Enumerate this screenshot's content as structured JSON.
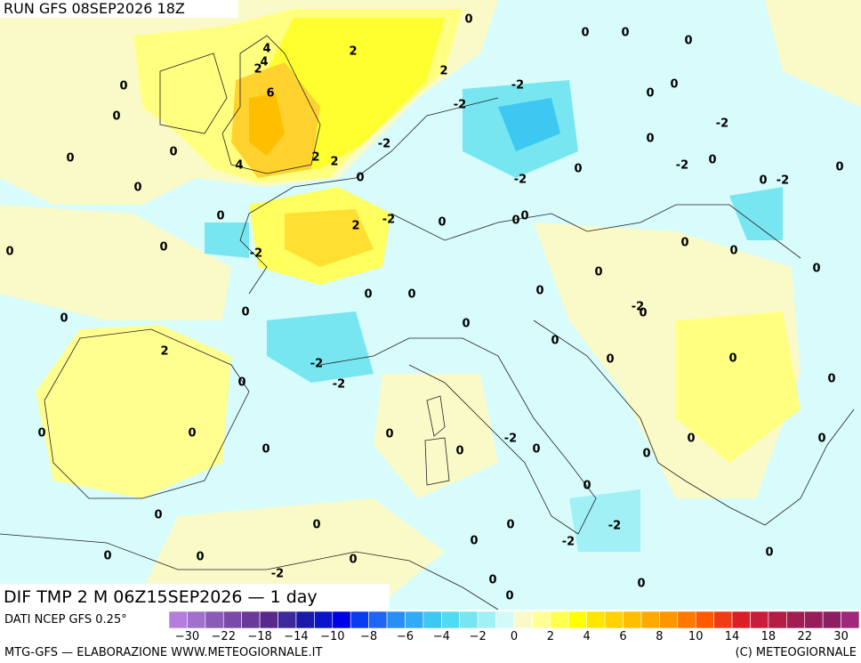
{
  "header": {
    "title": "RUN GFS 08SEP2026 18Z"
  },
  "footer": {
    "title": "DIF TMP 2 M 06Z15SEP2026 — 1 day",
    "source": "DATI NCEP GFS 0.25°",
    "credit_left": "MTG-GFS — ELABORAZIONE WWW.METEOGIORNALE.IT",
    "credit_right": "(C) METEOGIORNALE"
  },
  "colorbar": {
    "colors": [
      "#b57edc",
      "#a070cc",
      "#8a5cb8",
      "#7a4aa8",
      "#6a3a98",
      "#5a2a8a",
      "#3c2a9a",
      "#1a1aaa",
      "#0a14c8",
      "#0000e6",
      "#0a3cf0",
      "#1e64f5",
      "#2890f5",
      "#32aaf5",
      "#3cc8f0",
      "#50dcf0",
      "#78e6f0",
      "#a0f0f5",
      "#d2fafa",
      "#fafac8",
      "#ffff96",
      "#ffff50",
      "#ffff00",
      "#ffe600",
      "#ffd200",
      "#ffbe00",
      "#ffaa00",
      "#ff9600",
      "#ff7800",
      "#ff5a00",
      "#f03c14",
      "#dc1e28",
      "#c81e3c",
      "#b41e46",
      "#a01e50",
      "#961e5a",
      "#8c1e64",
      "#a0287a"
    ],
    "labels": [
      "−30",
      "−22",
      "−18",
      "−14",
      "−10",
      "−8",
      "−6",
      "−4",
      "−2",
      "0",
      "2",
      "4",
      "6",
      "8",
      "10",
      "14",
      "18",
      "22",
      "30"
    ]
  },
  "map_labels": [
    "4",
    "4",
    "2",
    "6",
    "2",
    "2",
    "0",
    "0",
    "0",
    "0",
    "-2",
    "-2",
    "0",
    "0",
    "0",
    "0",
    "-2",
    "-2",
    "0",
    "0",
    "0",
    "2",
    "2",
    "4",
    "0",
    "0",
    "-2",
    "0",
    "-2",
    "0",
    "0",
    "-2",
    "0",
    "0",
    "-2",
    "2",
    "0",
    "0",
    "0",
    "0",
    "0",
    "-2",
    "0",
    "0",
    "0",
    "0",
    "0",
    "0",
    "0",
    "0",
    "0",
    "-2",
    "0",
    "0",
    "0",
    "2",
    "-2",
    "0",
    "0",
    "0",
    "-2",
    "0",
    "0",
    "0",
    "0",
    "-2",
    "0",
    "0",
    "0",
    "0",
    "0",
    "0",
    "0",
    "0",
    "0",
    "0",
    "-2",
    "0",
    "-2",
    "0",
    "0",
    "0",
    "0",
    "-2",
    "0",
    "0",
    "0"
  ]
}
